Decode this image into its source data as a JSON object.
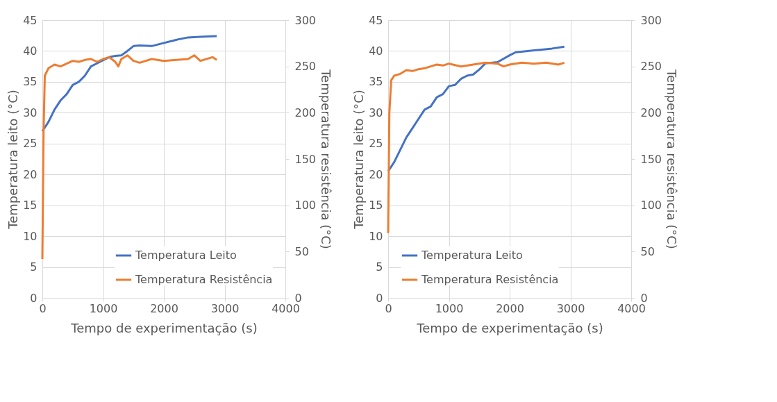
{
  "chart_data": [
    {
      "type": "line",
      "xlabel": "Tempo de experimentação (s)",
      "ylabel": "Temperatura leito (°C)",
      "y2label": "Temperatura resistência (°C)",
      "xlim": [
        0,
        4000
      ],
      "xticks": [
        0,
        1000,
        2000,
        3000,
        4000
      ],
      "ylim": [
        0,
        45
      ],
      "yticks": [
        0,
        5,
        10,
        15,
        20,
        25,
        30,
        35,
        40,
        45
      ],
      "y2lim": [
        0,
        300
      ],
      "y2ticks": [
        0,
        50,
        100,
        150,
        200,
        250,
        300
      ],
      "grid": true,
      "legend": "bottom right",
      "marker": "none",
      "line_style": "solid",
      "series": [
        {
          "name": "Temperatura Leito",
          "color": "#4472c4",
          "x": [
            0,
            100,
            200,
            300,
            400,
            500,
            600,
            700,
            800,
            900,
            1000,
            1100,
            1200,
            1300,
            1400,
            1500,
            1600,
            1800,
            2000,
            2200,
            2400,
            2600,
            2870
          ],
          "values": [
            27,
            28.5,
            30.5,
            32,
            33,
            34.5,
            35,
            36,
            37.5,
            38,
            38.5,
            39,
            39.2,
            39.3,
            40,
            40.8,
            40.9,
            40.8,
            41.3,
            41.8,
            42.2,
            42.3,
            42.4
          ]
        },
        {
          "name": "Temperatura Resistência",
          "color": "#ed7d31",
          "axis": "y2",
          "x": [
            0,
            20,
            40,
            100,
            200,
            300,
            400,
            500,
            600,
            700,
            800,
            900,
            1000,
            1100,
            1200,
            1250,
            1300,
            1400,
            1500,
            1600,
            1800,
            2000,
            2200,
            2400,
            2500,
            2600,
            2800,
            2870
          ],
          "values": [
            42,
            180,
            240,
            248,
            252,
            250,
            253,
            256,
            255,
            257,
            258,
            255,
            258,
            260,
            255,
            250,
            258,
            262,
            256,
            254,
            258,
            256,
            257,
            258,
            262,
            256,
            260,
            257
          ]
        }
      ]
    },
    {
      "type": "line",
      "xlabel": "Tempo de experimentação (s)",
      "ylabel": "Temperatura leito (°C)",
      "y2label": "Temperatura resistência (°C)",
      "xlim": [
        0,
        4000
      ],
      "xticks": [
        0,
        1000,
        2000,
        3000,
        4000
      ],
      "ylim": [
        0,
        45
      ],
      "yticks": [
        0,
        5,
        10,
        15,
        20,
        25,
        30,
        35,
        40,
        45
      ],
      "y2lim": [
        0,
        300
      ],
      "y2ticks": [
        0,
        50,
        100,
        150,
        200,
        250,
        300
      ],
      "grid": true,
      "legend": "bottom left",
      "marker": "none",
      "line_style": "solid",
      "series": [
        {
          "name": "Temperatura Leito",
          "color": "#4472c4",
          "x": [
            0,
            100,
            200,
            300,
            400,
            500,
            600,
            700,
            800,
            900,
            1000,
            1100,
            1200,
            1300,
            1400,
            1500,
            1600,
            1800,
            2000,
            2100,
            2300,
            2500,
            2700,
            2900
          ],
          "values": [
            20.5,
            22,
            24,
            26,
            27.5,
            29,
            30.5,
            31,
            32.5,
            33,
            34.3,
            34.5,
            35.5,
            36,
            36.2,
            37,
            38,
            38.2,
            39.3,
            39.8,
            40,
            40.2,
            40.4,
            40.7
          ]
        },
        {
          "name": "Temperatura Resistência",
          "color": "#ed7d31",
          "axis": "y2",
          "x": [
            0,
            20,
            50,
            100,
            200,
            300,
            400,
            500,
            600,
            700,
            800,
            900,
            1000,
            1200,
            1400,
            1600,
            1800,
            1900,
            2000,
            2200,
            2400,
            2600,
            2800,
            2900
          ],
          "values": [
            70,
            200,
            235,
            240,
            242,
            246,
            245,
            247,
            248,
            250,
            252,
            251,
            253,
            250,
            252,
            254,
            253,
            250,
            252,
            254,
            253,
            254,
            252,
            254
          ]
        }
      ]
    }
  ]
}
